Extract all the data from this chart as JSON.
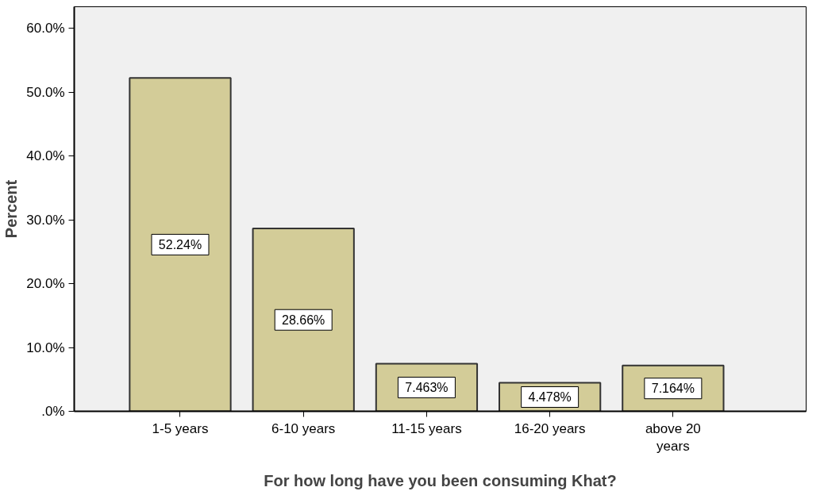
{
  "chart_data": {
    "type": "bar",
    "xlabel": "For how long have you been consuming Khat?",
    "ylabel": "Percent",
    "categories": [
      "1-5 years",
      "6-10 years",
      "11-15 years",
      "16-20 years",
      "above 20 years"
    ],
    "values": [
      52.24,
      28.66,
      7.463,
      4.478,
      7.164
    ],
    "value_labels": [
      "52.24%",
      "28.66%",
      "7.463%",
      "4.478%",
      "7.164%"
    ],
    "color": "#d3cc98",
    "ylim": [
      0,
      63.4
    ],
    "yticks": [
      {
        "value": 0,
        "label": ".0%"
      },
      {
        "value": 10,
        "label": "10.0%"
      },
      {
        "value": 20,
        "label": "20.0%"
      },
      {
        "value": 30,
        "label": "30.0%"
      },
      {
        "value": 40,
        "label": "40.0%"
      },
      {
        "value": 50,
        "label": "50.0%"
      },
      {
        "value": 60,
        "label": "60.0%"
      }
    ],
    "grid": false
  }
}
